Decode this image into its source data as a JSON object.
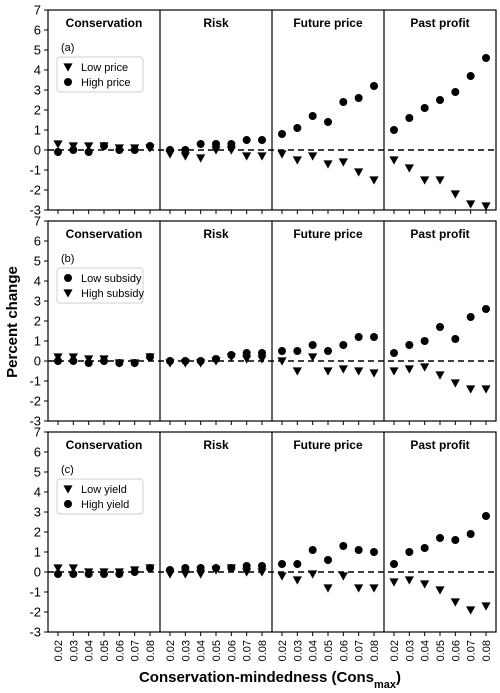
{
  "chart_data": {
    "type": "scatter",
    "ylabel": "Percent change",
    "xlabel": "Conservation-mindedness (Cons",
    "xlabel_sub": "max",
    "xlabel_close": ")",
    "x_ticks": [
      "0.02",
      "0.03",
      "0.04",
      "0.05",
      "0.06",
      "0.07",
      "0.08"
    ],
    "groups": [
      "Conservation",
      "Risk",
      "Future price",
      "Past profit"
    ],
    "ylim": [
      -3,
      7
    ],
    "yticks": [
      -3,
      -2,
      -1,
      0,
      1,
      2,
      3,
      4,
      5,
      6,
      7
    ],
    "reference_line": {
      "y": 0,
      "style": "dashed"
    },
    "panels": [
      {
        "label": "(a)",
        "legend": "top-left",
        "series": [
          {
            "name": "Low price",
            "marker": "triangle-down",
            "values": {
              "Conservation": [
                0.3,
                0.2,
                0.2,
                0.2,
                0.1,
                0.1,
                0.1
              ],
              "Risk": [
                -0.2,
                -0.3,
                -0.4,
                0.0,
                0.0,
                -0.3,
                -0.3
              ],
              "Future price": [
                -0.2,
                -0.5,
                -0.3,
                -0.7,
                -0.6,
                -1.1,
                -1.5
              ],
              "Past profit": [
                -0.5,
                -0.9,
                -1.5,
                -1.5,
                -2.2,
                -2.7,
                -2.8
              ]
            }
          },
          {
            "name": "High price",
            "marker": "circle",
            "values": {
              "Conservation": [
                -0.1,
                0.0,
                -0.1,
                0.2,
                0.0,
                0.0,
                0.2
              ],
              "Risk": [
                0.0,
                0.0,
                0.3,
                0.3,
                0.3,
                0.5,
                0.5
              ],
              "Future price": [
                0.8,
                1.1,
                1.7,
                1.4,
                2.4,
                2.6,
                3.2
              ],
              "Past profit": [
                1.0,
                1.6,
                2.1,
                2.5,
                2.9,
                3.7,
                4.6
              ]
            }
          }
        ]
      },
      {
        "label": "(b)",
        "legend": "top-left",
        "series": [
          {
            "name": "Low subsidy",
            "marker": "circle",
            "values": {
              "Conservation": [
                0.0,
                0.0,
                -0.1,
                0.0,
                -0.1,
                -0.1,
                0.2
              ],
              "Risk": [
                0.0,
                0.0,
                0.0,
                0.1,
                0.3,
                0.4,
                0.4
              ],
              "Future price": [
                0.5,
                0.5,
                0.8,
                0.5,
                0.8,
                1.2,
                1.2
              ],
              "Past profit": [
                0.4,
                0.8,
                1.0,
                1.7,
                1.1,
                2.2,
                2.6
              ]
            }
          },
          {
            "name": "High subsidy",
            "marker": "triangle-down",
            "values": {
              "Conservation": [
                0.2,
                0.2,
                0.1,
                0.1,
                -0.1,
                -0.1,
                0.2
              ],
              "Risk": [
                -0.1,
                -0.1,
                -0.1,
                0.0,
                0.2,
                0.1,
                0.1
              ],
              "Future price": [
                0.0,
                -0.5,
                0.2,
                -0.5,
                -0.4,
                -0.5,
                -0.6
              ],
              "Past profit": [
                -0.5,
                -0.4,
                -0.3,
                -0.7,
                -1.1,
                -1.4,
                -1.4
              ]
            }
          }
        ]
      },
      {
        "label": "(c)",
        "legend": "top-left",
        "series": [
          {
            "name": "Low yield",
            "marker": "triangle-down",
            "values": {
              "Conservation": [
                0.2,
                0.2,
                0.0,
                0.0,
                0.0,
                0.1,
                0.2
              ],
              "Risk": [
                -0.1,
                -0.1,
                -0.1,
                0.1,
                0.2,
                0.0,
                0.0
              ],
              "Future price": [
                -0.2,
                -0.4,
                -0.1,
                -0.8,
                -0.2,
                -0.8,
                -0.8
              ],
              "Past profit": [
                -0.5,
                -0.4,
                -0.6,
                -0.9,
                -1.5,
                -1.9,
                -1.7
              ]
            }
          },
          {
            "name": "High yield",
            "marker": "circle",
            "values": {
              "Conservation": [
                -0.1,
                -0.1,
                -0.1,
                -0.1,
                -0.1,
                0.0,
                0.2
              ],
              "Risk": [
                0.1,
                0.2,
                0.2,
                0.2,
                0.2,
                0.3,
                0.3
              ],
              "Future price": [
                0.4,
                0.4,
                1.1,
                0.6,
                1.3,
                1.1,
                1.0
              ],
              "Past profit": [
                0.4,
                1.0,
                1.2,
                1.7,
                1.6,
                1.9,
                2.8
              ]
            }
          }
        ]
      }
    ]
  }
}
